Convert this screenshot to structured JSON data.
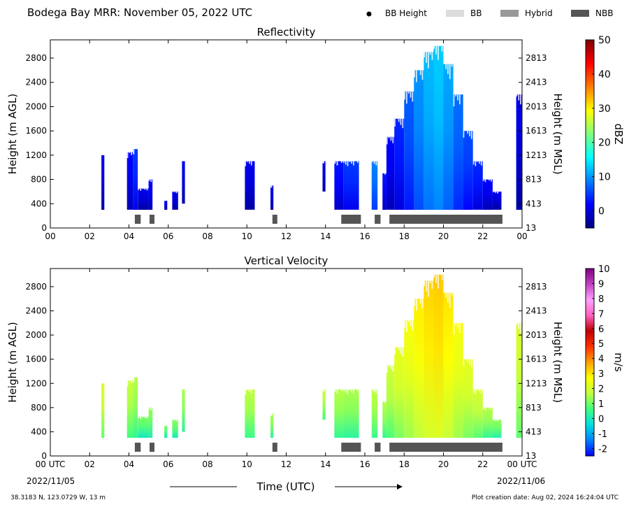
{
  "header": {
    "title": "Bodega Bay MRR:  November 05, 2022 UTC",
    "legend": [
      {
        "label": "BB Height",
        "kind": "dot",
        "color": "#000000"
      },
      {
        "label": "BB",
        "kind": "swatch",
        "color": "#dcdcdc"
      },
      {
        "label": "Hybrid",
        "kind": "swatch",
        "color": "#999999"
      },
      {
        "label": "NBB",
        "kind": "swatch",
        "color": "#555555"
      }
    ]
  },
  "footer": {
    "location": "38.3183 N, 123.0729 W, 13 m",
    "creation": "Plot creation date: Aug 02, 2024 16:24:04 UTC",
    "xlabel": "Time (UTC)",
    "start_date": "2022/11/05",
    "end_date": "2022/11/06"
  },
  "chart_data": [
    {
      "type": "heatmap",
      "title": "Reflectivity",
      "xlabel": "",
      "ylabel": "Height (m AGL)",
      "ylabel_right": "Height (m MSL)",
      "xlim": [
        0,
        24
      ],
      "ylim": [
        0,
        3100
      ],
      "x_ticks": [
        "00",
        "02",
        "04",
        "06",
        "08",
        "10",
        "12",
        "14",
        "16",
        "18",
        "20",
        "22",
        "00"
      ],
      "y_ticks": [
        0,
        400,
        800,
        1200,
        1600,
        2000,
        2400,
        2800
      ],
      "y_ticks_right": [
        13,
        413,
        813,
        1213,
        1613,
        2013,
        2413,
        2813
      ],
      "colorbar": {
        "label": "dBZ",
        "min": -5,
        "max": 50,
        "ticks": [
          0,
          10,
          20,
          30,
          40,
          50
        ],
        "stops": [
          "#00007f",
          "#0000ff",
          "#007fff",
          "#00ffff",
          "#7fff7f",
          "#ffff00",
          "#ff7f00",
          "#ff0000",
          "#7f0000"
        ]
      },
      "columns": [
        {
          "x0": 2.6,
          "x1": 2.75,
          "bottom": 300,
          "top": 1200,
          "v": 0
        },
        {
          "x0": 3.9,
          "x1": 4.2,
          "bottom": 300,
          "top": 1250,
          "v": 1
        },
        {
          "x0": 4.2,
          "x1": 4.45,
          "bottom": 300,
          "top": 1300,
          "v": 4
        },
        {
          "x0": 4.45,
          "x1": 5.0,
          "bottom": 300,
          "top": 650,
          "v": 0
        },
        {
          "x0": 5.0,
          "x1": 5.2,
          "bottom": 300,
          "top": 800,
          "v": 1
        },
        {
          "x0": 5.8,
          "x1": 5.95,
          "bottom": 300,
          "top": 450,
          "v": 0
        },
        {
          "x0": 6.2,
          "x1": 6.5,
          "bottom": 300,
          "top": 600,
          "v": 0
        },
        {
          "x0": 6.7,
          "x1": 6.85,
          "bottom": 400,
          "top": 1100,
          "v": 0
        },
        {
          "x0": 9.9,
          "x1": 10.4,
          "bottom": 300,
          "top": 1100,
          "v": 0
        },
        {
          "x0": 11.2,
          "x1": 11.35,
          "bottom": 300,
          "top": 700,
          "v": 0
        },
        {
          "x0": 13.85,
          "x1": 14.0,
          "bottom": 600,
          "top": 1100,
          "v": 0
        },
        {
          "x0": 14.45,
          "x1": 14.9,
          "bottom": 300,
          "top": 1100,
          "v": 2
        },
        {
          "x0": 14.9,
          "x1": 15.7,
          "bottom": 300,
          "top": 1100,
          "v": 4
        },
        {
          "x0": 16.35,
          "x1": 16.65,
          "bottom": 300,
          "top": 1100,
          "v": 8
        },
        {
          "x0": 16.9,
          "x1": 17.1,
          "bottom": 300,
          "top": 900,
          "v": 2
        },
        {
          "x0": 17.1,
          "x1": 17.5,
          "bottom": 300,
          "top": 1500,
          "v": 1
        },
        {
          "x0": 17.5,
          "x1": 18.0,
          "bottom": 300,
          "top": 1800,
          "v": 3
        },
        {
          "x0": 18.0,
          "x1": 18.5,
          "bottom": 300,
          "top": 2250,
          "v": 6
        },
        {
          "x0": 18.5,
          "x1": 19.0,
          "bottom": 300,
          "top": 2600,
          "v": 9
        },
        {
          "x0": 19.0,
          "x1": 19.5,
          "bottom": 300,
          "top": 2900,
          "v": 11
        },
        {
          "x0": 19.5,
          "x1": 20.0,
          "bottom": 300,
          "top": 3000,
          "v": 12
        },
        {
          "x0": 20.0,
          "x1": 20.5,
          "bottom": 300,
          "top": 2700,
          "v": 10
        },
        {
          "x0": 20.5,
          "x1": 21.0,
          "bottom": 300,
          "top": 2200,
          "v": 7
        },
        {
          "x0": 21.0,
          "x1": 21.5,
          "bottom": 300,
          "top": 1600,
          "v": 5
        },
        {
          "x0": 21.5,
          "x1": 22.0,
          "bottom": 300,
          "top": 1100,
          "v": 3
        },
        {
          "x0": 22.0,
          "x1": 22.5,
          "bottom": 300,
          "top": 800,
          "v": 1
        },
        {
          "x0": 22.5,
          "x1": 22.95,
          "bottom": 300,
          "top": 600,
          "v": 0
        },
        {
          "x0": 23.7,
          "x1": 24.0,
          "bottom": 300,
          "top": 2200,
          "v": 0
        }
      ],
      "bands": [
        {
          "x0": 4.3,
          "x1": 4.6,
          "type": "NBB"
        },
        {
          "x0": 5.05,
          "x1": 5.3,
          "type": "NBB"
        },
        {
          "x0": 11.3,
          "x1": 11.55,
          "type": "NBB"
        },
        {
          "x0": 14.8,
          "x1": 15.8,
          "type": "NBB"
        },
        {
          "x0": 16.5,
          "x1": 16.8,
          "type": "NBB"
        },
        {
          "x0": 17.25,
          "x1": 23.0,
          "type": "NBB"
        }
      ]
    },
    {
      "type": "heatmap",
      "title": "Vertical Velocity",
      "xlabel": "",
      "ylabel": "Height (m AGL)",
      "ylabel_right": "Height (m MSL)",
      "xlim": [
        0,
        24
      ],
      "ylim": [
        0,
        3100
      ],
      "x_ticks": [
        "00 UTC",
        "02",
        "04",
        "06",
        "08",
        "10",
        "12",
        "14",
        "16",
        "18",
        "20",
        "22",
        "00 UTC"
      ],
      "y_ticks": [
        0,
        400,
        800,
        1200,
        1600,
        2000,
        2400,
        2800
      ],
      "y_ticks_right": [
        13,
        413,
        813,
        1213,
        1613,
        2013,
        2413,
        2813
      ],
      "colorbar": {
        "label": "m/s",
        "min": -2.5,
        "max": 10,
        "ticks": [
          -2,
          -1,
          0,
          1,
          2,
          3,
          4,
          5,
          6,
          7,
          8,
          9,
          10
        ],
        "stops": [
          "#0000ff",
          "#0080ff",
          "#00e0e0",
          "#40ff80",
          "#c0ff40",
          "#ffff00",
          "#ffa000",
          "#ff3000",
          "#c00000",
          "#ff60c0",
          "#ffa0ff",
          "#c040c0",
          "#800080"
        ]
      },
      "columns": [
        {
          "x0": 2.6,
          "x1": 2.75,
          "bottom": 300,
          "top": 1200,
          "v": 1.8
        },
        {
          "x0": 3.9,
          "x1": 4.2,
          "bottom": 300,
          "top": 1250,
          "v": 1.5
        },
        {
          "x0": 4.2,
          "x1": 4.45,
          "bottom": 300,
          "top": 1300,
          "v": 1.3
        },
        {
          "x0": 4.45,
          "x1": 5.0,
          "bottom": 300,
          "top": 650,
          "v": 0.8
        },
        {
          "x0": 5.0,
          "x1": 5.2,
          "bottom": 300,
          "top": 800,
          "v": 1.0
        },
        {
          "x0": 5.8,
          "x1": 5.95,
          "bottom": 300,
          "top": 500,
          "v": 0.8
        },
        {
          "x0": 6.2,
          "x1": 6.5,
          "bottom": 300,
          "top": 600,
          "v": 0.9
        },
        {
          "x0": 6.7,
          "x1": 6.85,
          "bottom": 400,
          "top": 1100,
          "v": 1.2
        },
        {
          "x0": 9.9,
          "x1": 10.4,
          "bottom": 300,
          "top": 1100,
          "v": 1.4
        },
        {
          "x0": 11.2,
          "x1": 11.35,
          "bottom": 300,
          "top": 700,
          "v": 1.2
        },
        {
          "x0": 13.85,
          "x1": 14.0,
          "bottom": 600,
          "top": 1100,
          "v": 1.5
        },
        {
          "x0": 14.45,
          "x1": 14.9,
          "bottom": 300,
          "top": 1100,
          "v": 1.3
        },
        {
          "x0": 14.9,
          "x1": 15.7,
          "bottom": 300,
          "top": 1100,
          "v": 1.2
        },
        {
          "x0": 16.35,
          "x1": 16.65,
          "bottom": 300,
          "top": 1100,
          "v": 1.4
        },
        {
          "x0": 16.9,
          "x1": 17.1,
          "bottom": 300,
          "top": 900,
          "v": 1.3
        },
        {
          "x0": 17.1,
          "x1": 17.5,
          "bottom": 300,
          "top": 1500,
          "v": 1.6
        },
        {
          "x0": 17.5,
          "x1": 18.0,
          "bottom": 300,
          "top": 1800,
          "v": 2.0
        },
        {
          "x0": 18.0,
          "x1": 18.5,
          "bottom": 300,
          "top": 2250,
          "v": 2.3
        },
        {
          "x0": 18.5,
          "x1": 19.0,
          "bottom": 300,
          "top": 2600,
          "v": 2.6
        },
        {
          "x0": 19.0,
          "x1": 19.5,
          "bottom": 300,
          "top": 2900,
          "v": 2.9
        },
        {
          "x0": 19.5,
          "x1": 20.0,
          "bottom": 300,
          "top": 3000,
          "v": 3.0
        },
        {
          "x0": 20.0,
          "x1": 20.5,
          "bottom": 300,
          "top": 2700,
          "v": 2.7
        },
        {
          "x0": 20.5,
          "x1": 21.0,
          "bottom": 300,
          "top": 2200,
          "v": 2.3
        },
        {
          "x0": 21.0,
          "x1": 21.5,
          "bottom": 300,
          "top": 1600,
          "v": 2.0
        },
        {
          "x0": 21.5,
          "x1": 22.0,
          "bottom": 300,
          "top": 1100,
          "v": 1.7
        },
        {
          "x0": 22.0,
          "x1": 22.5,
          "bottom": 300,
          "top": 800,
          "v": 1.3
        },
        {
          "x0": 22.5,
          "x1": 22.95,
          "bottom": 300,
          "top": 600,
          "v": 1.0
        },
        {
          "x0": 23.7,
          "x1": 24.0,
          "bottom": 300,
          "top": 2200,
          "v": 1.8
        }
      ],
      "bands": [
        {
          "x0": 4.3,
          "x1": 4.6,
          "type": "NBB"
        },
        {
          "x0": 5.05,
          "x1": 5.3,
          "type": "NBB"
        },
        {
          "x0": 11.3,
          "x1": 11.55,
          "type": "NBB"
        },
        {
          "x0": 14.8,
          "x1": 15.8,
          "type": "NBB"
        },
        {
          "x0": 16.5,
          "x1": 16.8,
          "type": "NBB"
        },
        {
          "x0": 17.25,
          "x1": 23.0,
          "type": "NBB"
        }
      ]
    }
  ]
}
